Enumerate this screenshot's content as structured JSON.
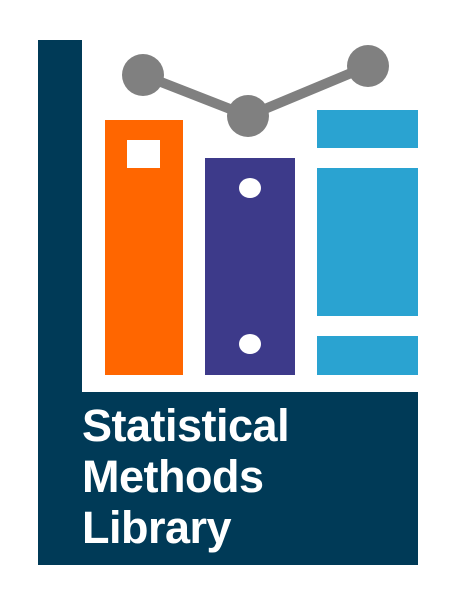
{
  "logo": {
    "lines": [
      "Statistical",
      "Methods",
      "Library"
    ],
    "colors": {
      "navy": "#003a57",
      "orange": "#ff6600",
      "purple": "#3d3a8a",
      "blue": "#2aa3d1",
      "node_gray": "#808080",
      "white": "#ffffff"
    },
    "icon_names": [
      "book-orange-icon",
      "book-purple-icon",
      "book-blue-icon",
      "line-chart-nodes-icon"
    ]
  }
}
